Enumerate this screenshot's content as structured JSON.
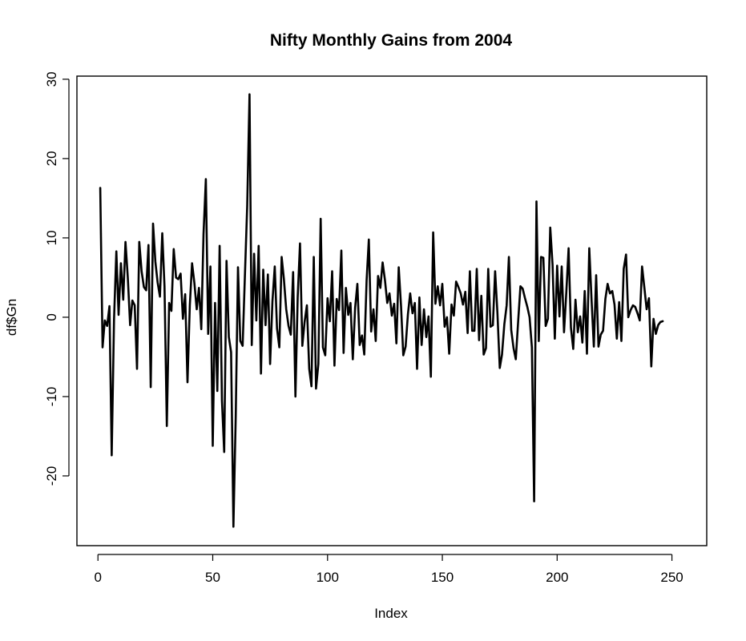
{
  "chart_data": {
    "type": "line",
    "title": "Nifty Monthly Gains from 2004",
    "xlabel": "Index",
    "ylabel": "df$Gn",
    "xlim": [
      1,
      255
    ],
    "ylim": [
      -26.6,
      28.2
    ],
    "x_ticks": [
      0,
      50,
      100,
      150,
      200,
      250
    ],
    "y_ticks": [
      -20,
      -10,
      0,
      10,
      20,
      30
    ],
    "x_tick_labels": [
      "0",
      "50",
      "100",
      "150",
      "200",
      "250"
    ],
    "y_tick_labels": [
      "-20",
      "-10",
      "0",
      "10",
      "20",
      "30"
    ],
    "grid": false,
    "legend": "none",
    "line_color": "#000000",
    "series": [
      {
        "values": [
          16.3,
          -3.8,
          -0.4,
          -1.1,
          1.4,
          -17.4,
          -0.3,
          8.3,
          0.3,
          6.8,
          2.2,
          9.5,
          5.0,
          -1.0,
          2.1,
          1.5,
          -6.5,
          9.5,
          5.8,
          3.8,
          3.4,
          9.1,
          -8.8,
          11.8,
          7.0,
          4.4,
          2.6,
          10.6,
          3.9,
          -13.7,
          1.8,
          0.8,
          8.6,
          5.0,
          4.8,
          5.5,
          -0.2,
          2.9,
          -8.2,
          1.5,
          6.8,
          4.3,
          1.0,
          3.7,
          -1.5,
          10.5,
          17.4,
          -2.1,
          6.4,
          -16.2,
          1.8,
          -9.3,
          9.0,
          -10.5,
          -17.0,
          7.1,
          -2.5,
          -4.4,
          -26.4,
          -12.5,
          6.3,
          -3.0,
          -3.6,
          5.1,
          14.0,
          28.1,
          -3.5,
          8.0,
          -0.4,
          9.0,
          -7.1,
          6.0,
          -1.0,
          5.4,
          -5.9,
          2.0,
          6.4,
          -1.4,
          -3.8,
          7.6,
          4.8,
          1.0,
          -1.1,
          -2.2,
          5.7,
          -10.0,
          2.5,
          9.3,
          -3.6,
          -0.6,
          1.5,
          -6.5,
          -8.7,
          7.6,
          -9.0,
          -5.9,
          12.4,
          -3.8,
          -4.8,
          2.4,
          -0.5,
          5.8,
          -6.1,
          2.3,
          0.9,
          8.4,
          -4.5,
          3.7,
          0.3,
          1.8,
          -5.3,
          1.2,
          4.2,
          -3.5,
          -2.3,
          -4.7,
          4.6,
          9.8,
          -1.8,
          1.0,
          -3.0,
          5.2,
          3.7,
          6.9,
          4.7,
          1.8,
          3.0,
          0.2,
          1.7,
          -3.3,
          6.3,
          1.4,
          -4.8,
          -3.7,
          0.4,
          3.0,
          0.5,
          1.8,
          -6.5,
          2.5,
          -3.5,
          1.0,
          -2.5,
          0.1,
          -7.5,
          10.7,
          1.7,
          3.9,
          1.5,
          4.2,
          -1.2,
          0.0,
          -4.6,
          1.6,
          0.2,
          4.5,
          3.8,
          3.0,
          1.6,
          3.2,
          -2.0,
          5.8,
          -1.7,
          -1.7,
          6.1,
          -2.9,
          2.7,
          -4.7,
          -3.9,
          6.1,
          -1.2,
          -1.0,
          5.8,
          0.5,
          -6.4,
          -4.7,
          -0.9,
          1.5,
          7.6,
          -1.6,
          -3.9,
          -5.3,
          -0.6,
          3.9,
          3.6,
          2.4,
          1.3,
          0.0,
          -3.8,
          -23.2,
          14.6,
          -3.0,
          7.6,
          7.5,
          -1.1,
          -0.2,
          11.3,
          6.6,
          -2.7,
          6.5,
          0.1,
          6.4,
          -1.9,
          3.2,
          8.7,
          -1.3,
          -4.0,
          2.2,
          -1.9,
          0.1,
          -3.2,
          3.3,
          -4.6,
          8.7,
          2.1,
          -3.7,
          5.3,
          -3.7,
          -2.2,
          -1.7,
          2.3,
          4.2,
          3.0,
          3.3,
          1.6,
          -2.7,
          1.9,
          -3.0,
          6.1,
          7.9,
          0.0,
          0.9,
          1.5,
          1.3,
          0.5,
          -0.4,
          6.4,
          3.7,
          1.0,
          2.4,
          -6.2,
          -0.2,
          -2.1,
          -1.0,
          -0.6,
          -0.5
        ]
      }
    ]
  }
}
